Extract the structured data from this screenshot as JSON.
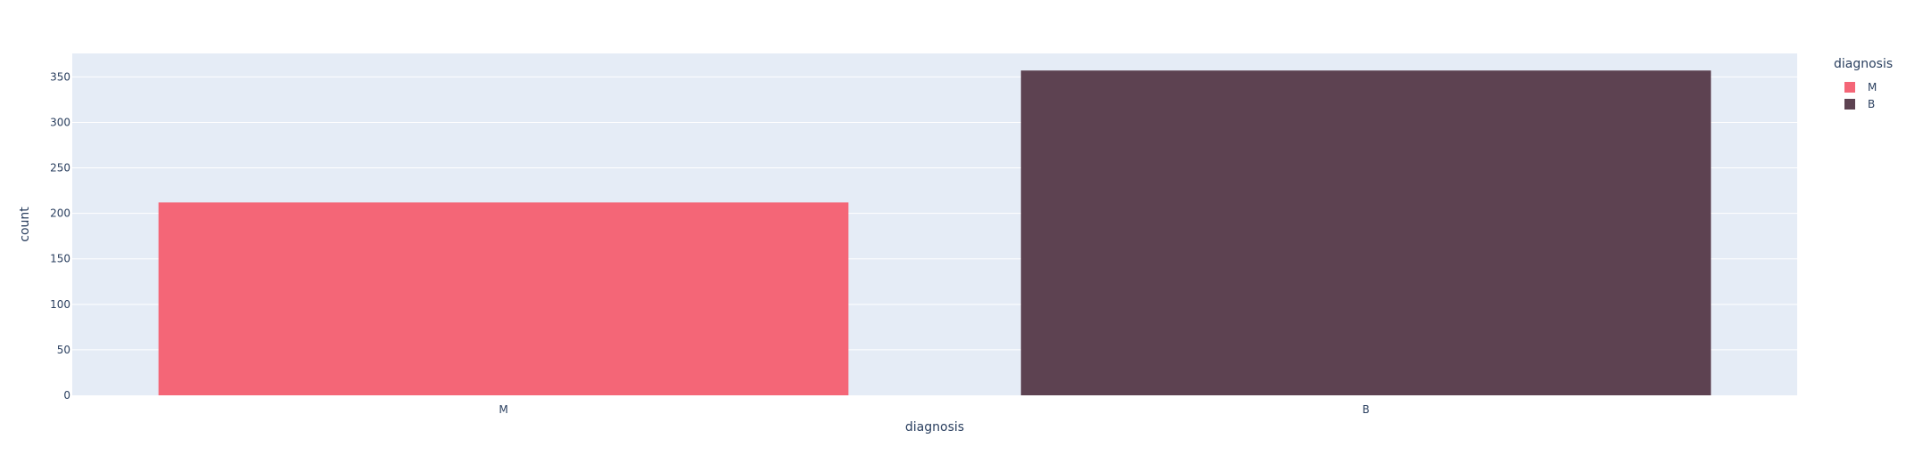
{
  "chart_data": {
    "type": "bar",
    "categories": [
      "M",
      "B"
    ],
    "values": [
      212,
      357
    ],
    "xlabel": "diagnosis",
    "ylabel": "count",
    "ylim": [
      0,
      375.79
    ],
    "yticks": [
      0,
      50,
      100,
      150,
      200,
      250,
      300,
      350
    ],
    "grid": true,
    "legend": {
      "title": "diagnosis",
      "placement": "top-right",
      "items": [
        {
          "label": "M",
          "color": "#f46677"
        },
        {
          "label": "B",
          "color": "#5d4251"
        }
      ]
    },
    "colors": {
      "plot_background": "#e5ecf6",
      "gridline": "#ffffff",
      "text": "#2a3f5f"
    }
  }
}
